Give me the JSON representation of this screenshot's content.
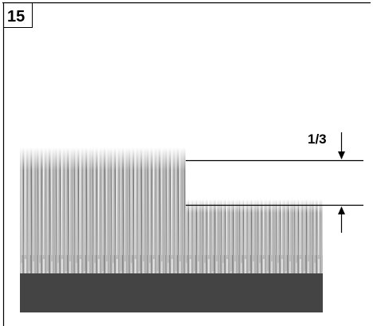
{
  "figure_number": "15",
  "annotation": "1/3"
}
